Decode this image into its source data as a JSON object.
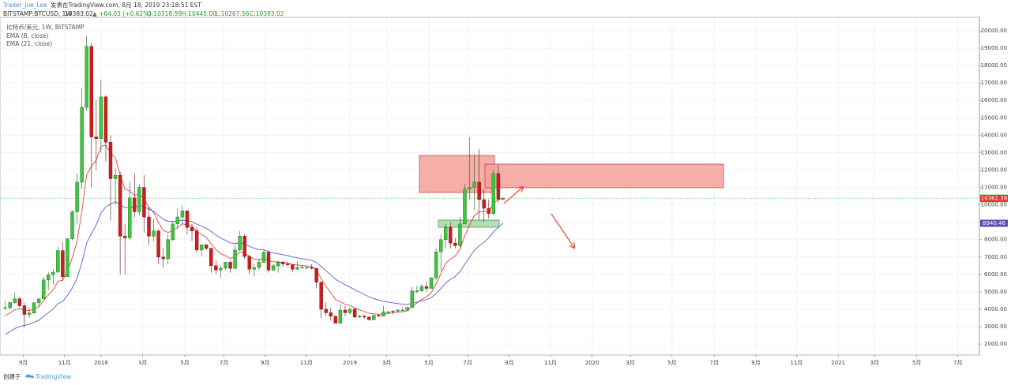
{
  "chart_data": {
    "type": "candlestick",
    "author": "Trader_Joe_Lee",
    "published": "发表在TradingView.com, 8月 18, 2019 23:18:51 EST",
    "symbol": "BITSTAMP:BTCUSD, 1W",
    "last_price": "10383.02",
    "change": "▲ +64.03 (+0.62%)",
    "ohlc": [
      "O:10318.99",
      "H:10445.00",
      "L:10267.56",
      "C:10383.02"
    ],
    "symbol_label": "比特币/美元, 1W, BITSTAMP",
    "footer": "创建于",
    "brand": "TradingView",
    "up_color": "#3cc83c",
    "down_color": "#d01c1c",
    "grid": true,
    "xlim": [
      -21.1,
      183.5
    ],
    "ylim": [
      1370,
      20770
    ],
    "xticks": [
      {
        "value": -16.2,
        "label": "9月"
      },
      {
        "value": -7.6,
        "label": "11月"
      },
      {
        "value": 0,
        "label": "2018"
      },
      {
        "value": 8.7,
        "label": "3月"
      },
      {
        "value": 17.5,
        "label": "5月"
      },
      {
        "value": 25.7,
        "label": "7月"
      },
      {
        "value": 34.3,
        "label": "9月"
      },
      {
        "value": 42.9,
        "label": "11月"
      },
      {
        "value": 52,
        "label": "2019"
      },
      {
        "value": 59.7,
        "label": "3月"
      },
      {
        "value": 68.5,
        "label": "5月"
      },
      {
        "value": 76.6,
        "label": "7月"
      },
      {
        "value": 85.3,
        "label": "9月"
      },
      {
        "value": 93.9,
        "label": "11月"
      },
      {
        "value": 102.6,
        "label": "2020"
      },
      {
        "value": 110.6,
        "label": "3月"
      },
      {
        "value": 119.3,
        "label": "5月"
      },
      {
        "value": 128.1,
        "label": "7月"
      },
      {
        "value": 136.8,
        "label": "9月"
      },
      {
        "value": 145.3,
        "label": "11月"
      },
      {
        "value": 154,
        "label": "2021"
      },
      {
        "value": 161.6,
        "label": "3月"
      },
      {
        "value": 170.4,
        "label": "5月"
      },
      {
        "value": 179,
        "label": "7月"
      }
    ],
    "yticks": [
      {
        "value": 2000,
        "label": "2000.00"
      },
      {
        "value": 3000,
        "label": "3000.00"
      },
      {
        "value": 4000,
        "label": "4000.00"
      },
      {
        "value": 5000,
        "label": "5000.00"
      },
      {
        "value": 6000,
        "label": "6000.00"
      },
      {
        "value": 7000,
        "label": "7000.00"
      },
      {
        "value": 8000,
        "label": "8000.00"
      },
      {
        "value": 9000,
        "label": "9000.00"
      },
      {
        "value": 10000,
        "label": "10000.00"
      },
      {
        "value": 11000,
        "label": "11000.00"
      },
      {
        "value": 12000,
        "label": "12000.00"
      },
      {
        "value": 13000,
        "label": "13000.00"
      },
      {
        "value": 14000,
        "label": "14000.00"
      },
      {
        "value": 15000,
        "label": "15000.00"
      },
      {
        "value": 16000,
        "label": "16000.00"
      },
      {
        "value": 17000,
        "label": "17000.00"
      },
      {
        "value": 18000,
        "label": "18000.00"
      },
      {
        "value": 19000,
        "label": "19000.00"
      },
      {
        "value": 20000,
        "label": "20000.00"
      }
    ],
    "x": [
      -20,
      -19,
      -18,
      -17,
      -16,
      -15,
      -14,
      -13,
      -12,
      -11,
      -10,
      -9,
      -8,
      -7,
      -6,
      -5,
      -4,
      -3,
      -2,
      -1,
      0,
      1,
      2,
      3,
      4,
      5,
      6,
      7,
      8,
      9,
      10,
      11,
      12,
      13,
      14,
      15,
      16,
      17,
      18,
      19,
      20,
      21,
      22,
      23,
      24,
      25,
      26,
      27,
      28,
      29,
      30,
      31,
      32,
      33,
      34,
      35,
      36,
      37,
      38,
      39,
      40,
      41,
      42,
      43,
      44,
      45,
      46,
      47,
      48,
      49,
      50,
      51,
      52,
      53,
      54,
      55,
      56,
      57,
      58,
      59,
      60,
      61,
      62,
      63,
      64,
      65,
      66,
      67,
      68,
      69,
      70,
      71,
      72,
      73,
      74,
      75,
      76,
      77,
      78,
      79,
      80,
      81,
      82,
      83,
      84
    ],
    "candles": [
      [
        4060,
        4480,
        3970,
        4090
      ],
      [
        4090,
        4480,
        3960,
        4380
      ],
      [
        4380,
        4980,
        4330,
        4600
      ],
      [
        4600,
        4700,
        4100,
        4200
      ],
      [
        4200,
        4370,
        2970,
        3700
      ],
      [
        3700,
        4120,
        3500,
        3780
      ],
      [
        3780,
        4400,
        3750,
        4370
      ],
      [
        4370,
        4620,
        4160,
        4600
      ],
      [
        4600,
        5850,
        4580,
        5690
      ],
      [
        5690,
        6120,
        5100,
        5980
      ],
      [
        5980,
        6300,
        5400,
        6130
      ],
      [
        6130,
        7600,
        6100,
        7370
      ],
      [
        7370,
        7880,
        5600,
        5870
      ],
      [
        5870,
        8100,
        5850,
        8050
      ],
      [
        8050,
        9700,
        7950,
        9600
      ],
      [
        9600,
        11800,
        8900,
        11300
      ],
      [
        11300,
        16700,
        10900,
        15600
      ],
      [
        15600,
        19700,
        15400,
        19100
      ],
      [
        19100,
        19300,
        11000,
        13900
      ],
      [
        13900,
        16000,
        12000,
        13800
      ],
      [
        13800,
        17200,
        13000,
        16200
      ],
      [
        16200,
        16300,
        12500,
        13600
      ],
      [
        13600,
        14000,
        9100,
        11500
      ],
      [
        11500,
        12100,
        10000,
        11700
      ],
      [
        11700,
        11900,
        6000,
        8200
      ],
      [
        8200,
        8900,
        6000,
        8100
      ],
      [
        8100,
        11300,
        8000,
        10400
      ],
      [
        10400,
        11800,
        9300,
        9600
      ],
      [
        9600,
        11200,
        9400,
        11000
      ],
      [
        11000,
        11700,
        8400,
        9300
      ],
      [
        9300,
        9900,
        7700,
        8200
      ],
      [
        8200,
        9200,
        7900,
        8500
      ],
      [
        8500,
        8600,
        6600,
        7000
      ],
      [
        7000,
        7500,
        6400,
        6900
      ],
      [
        6900,
        8300,
        6600,
        8000
      ],
      [
        8000,
        9000,
        7900,
        8900
      ],
      [
        8900,
        9800,
        8600,
        9300
      ],
      [
        9300,
        9960,
        8900,
        9650
      ],
      [
        9650,
        9700,
        8300,
        8700
      ],
      [
        8700,
        8900,
        7900,
        8500
      ],
      [
        8500,
        8700,
        7250,
        7400
      ],
      [
        7400,
        7700,
        7050,
        7700
      ],
      [
        7700,
        7750,
        7400,
        7500
      ],
      [
        7500,
        7550,
        6100,
        6500
      ],
      [
        6500,
        6800,
        6000,
        6250
      ],
      [
        6250,
        6500,
        5800,
        6360
      ],
      [
        6360,
        6700,
        6250,
        6700
      ],
      [
        6700,
        6800,
        6100,
        6350
      ],
      [
        6350,
        7700,
        6300,
        7400
      ],
      [
        7400,
        8500,
        7350,
        8200
      ],
      [
        8200,
        8300,
        6900,
        7030
      ],
      [
        7030,
        7150,
        6000,
        6300
      ],
      [
        6300,
        6600,
        5900,
        6400
      ],
      [
        6400,
        6900,
        6250,
        6700
      ],
      [
        6700,
        7400,
        6650,
        7270
      ],
      [
        7270,
        7400,
        6100,
        6250
      ],
      [
        6250,
        6600,
        6200,
        6500
      ],
      [
        6500,
        6800,
        6100,
        6700
      ],
      [
        6700,
        6800,
        6450,
        6600
      ],
      [
        6600,
        6700,
        6450,
        6550
      ],
      [
        6550,
        6600,
        6150,
        6300
      ],
      [
        6300,
        6750,
        6250,
        6400
      ],
      [
        6400,
        6500,
        6350,
        6400
      ],
      [
        6400,
        6450,
        6300,
        6400
      ],
      [
        6400,
        6600,
        6300,
        6350
      ],
      [
        6350,
        6400,
        5200,
        5550
      ],
      [
        5550,
        5600,
        3500,
        4000
      ],
      [
        4000,
        4400,
        3600,
        3800
      ],
      [
        3800,
        4100,
        3350,
        3600
      ],
      [
        3600,
        3600,
        3200,
        3200
      ],
      [
        3200,
        4300,
        3200,
        3950
      ],
      [
        3950,
        4200,
        3600,
        3800
      ],
      [
        3800,
        4100,
        3700,
        4000
      ],
      [
        4000,
        4100,
        3500,
        3550
      ],
      [
        3550,
        3700,
        3500,
        3600
      ],
      [
        3600,
        3650,
        3450,
        3550
      ],
      [
        3550,
        3600,
        3350,
        3400
      ],
      [
        3400,
        3700,
        3400,
        3650
      ],
      [
        3650,
        3700,
        3550,
        3600
      ],
      [
        3600,
        4200,
        3600,
        3850
      ],
      [
        3850,
        3900,
        3700,
        3850
      ],
      [
        3850,
        3950,
        3700,
        3900
      ],
      [
        3900,
        4000,
        3800,
        3950
      ],
      [
        3950,
        4100,
        3900,
        3950
      ],
      [
        3950,
        4150,
        3900,
        4100
      ],
      [
        4100,
        5300,
        4100,
        5050
      ],
      [
        5050,
        5350,
        4900,
        5050
      ],
      [
        5050,
        5450,
        5000,
        5300
      ],
      [
        5300,
        5600,
        5000,
        5200
      ],
      [
        5200,
        5850,
        5200,
        5800
      ],
      [
        5800,
        7500,
        5700,
        7300
      ],
      [
        7300,
        8300,
        6200,
        8000
      ],
      [
        8000,
        8900,
        7500,
        8700
      ],
      [
        8700,
        9000,
        7500,
        7800
      ],
      [
        7800,
        8100,
        7500,
        7650
      ],
      [
        7650,
        9300,
        7550,
        8900
      ],
      [
        8900,
        11200,
        8900,
        10900
      ],
      [
        10900,
        13900,
        10300,
        11000
      ],
      [
        11000,
        12900,
        9700,
        11300
      ],
      [
        11300,
        13200,
        9100,
        10300
      ],
      [
        10300,
        10900,
        9000,
        9800
      ],
      [
        9800,
        10300,
        9200,
        9500
      ],
      [
        9500,
        12000,
        9400,
        11800
      ],
      [
        11800,
        12300,
        10100,
        10318.99
      ],
      [
        10318.99,
        10445,
        10267.56,
        10383.02
      ]
    ],
    "series": [
      {
        "name": "EMA (8, close)",
        "color": "#e8453c",
        "values": [
          3631,
          3797,
          3975,
          4025,
          3953,
          3915,
          4016,
          4146,
          4489,
          4820,
          5111,
          5612,
          5669,
          6198,
          6953,
          7918,
          9623,
          11727,
          12209,
          12562,
          13370,
          13421,
          12995,
          12708,
          11707,
          10906,
          10794,
          10529,
          10634,
          10338,
          9863,
          9560,
          8992,
          8528,
          8411,
          8520,
          8693,
          8905,
          8859,
          8779,
          8473,
          8301,
          8123,
          7763,
          7427,
          7190,
          7081,
          6919,
          7026,
          7287,
          7230,
          7024,
          6885,
          6844,
          6939,
          6786,
          6723,
          6718,
          6692,
          6660,
          6580,
          6540,
          6509,
          6485,
          6455,
          6254,
          5754,
          5320,
          4938,
          4552,
          4418,
          4281,
          4219,
          4070,
          3966,
          3874,
          3769,
          3743,
          3711,
          3742,
          3766,
          3796,
          3830,
          3857,
          3911,
          4164,
          4361,
          4569,
          4709,
          4951,
          5472,
          6033,
          6625,
          6886,
          7056,
          7465,
          8228,
          8843,
          9388,
          9590,
          9637,
          9607,
          10094,
          10300,
          10362.38
        ]
      },
      {
        "name": "EMA (21, close)",
        "color": "#5b5fc7",
        "values": [
          2554,
          2720,
          2891,
          3010,
          3073,
          3137,
          3249,
          3372,
          3583,
          3801,
          4013,
          4318,
          4459,
          4785,
          5223,
          5775,
          6668,
          7798,
          8353,
          8848,
          9516,
          9887,
          10034,
          10185,
          10005,
          9832,
          9884,
          9858,
          9962,
          9902,
          9747,
          9634,
          9395,
          9168,
          9062,
          9047,
          9070,
          9123,
          9085,
          9032,
          8884,
          8776,
          8660,
          8464,
          8263,
          8090,
          7964,
          7817,
          7779,
          7817,
          7745,
          7614,
          7504,
          7431,
          7416,
          7310,
          7236,
          7187,
          7134,
          7081,
          7010,
          6955,
          6905,
          6859,
          6813,
          6698,
          6453,
          6212,
          5975,
          5723,
          5562,
          5402,
          5275,
          5118,
          4980,
          4850,
          4718,
          4621,
          4528,
          4466,
          4410,
          4364,
          4326,
          4292,
          4275,
          4345,
          4409,
          4490,
          4555,
          4668,
          4907,
          5188,
          5507,
          5715,
          5891,
          6165,
          6595,
          6995,
          7386,
          7651,
          7846,
          8100,
          8450,
          8700,
          8940.46
        ]
      }
    ]
  }
}
